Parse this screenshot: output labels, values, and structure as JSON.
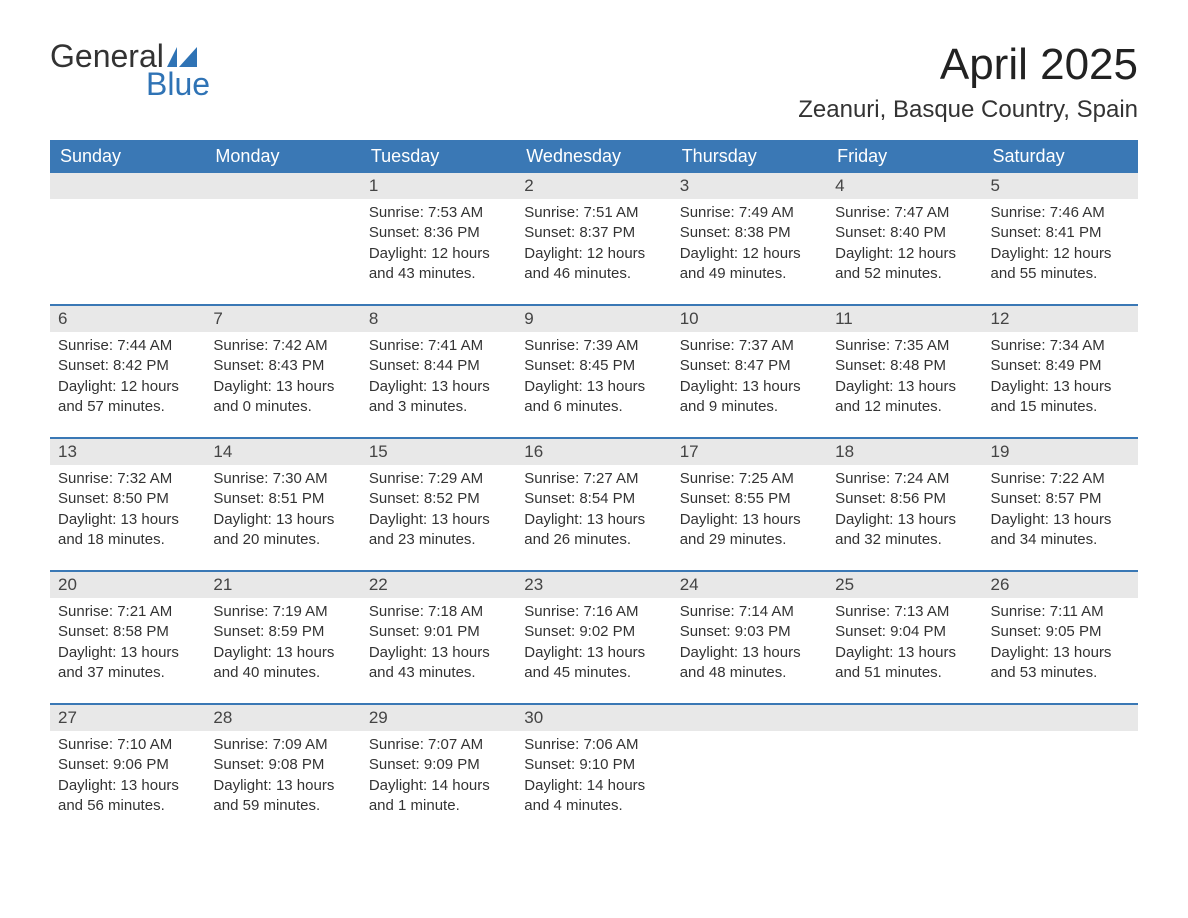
{
  "logo": {
    "word1": "General",
    "word2": "Blue"
  },
  "title": "April 2025",
  "location": "Zeanuri, Basque Country, Spain",
  "colors": {
    "header_bg": "#3a78b5",
    "header_text": "#ffffff",
    "daynum_bg": "#e8e8e8",
    "text": "#333333",
    "logo_blue": "#2f73b5",
    "row_border": "#3a78b5"
  },
  "typography": {
    "title_fontsize": 44,
    "location_fontsize": 24,
    "dow_fontsize": 18,
    "daynum_fontsize": 17,
    "body_fontsize": 15
  },
  "calendar": {
    "type": "table",
    "days_of_week": [
      "Sunday",
      "Monday",
      "Tuesday",
      "Wednesday",
      "Thursday",
      "Friday",
      "Saturday"
    ],
    "weeks": [
      [
        null,
        null,
        {
          "n": "1",
          "sunrise": "7:53 AM",
          "sunset": "8:36 PM",
          "daylight": "12 hours and 43 minutes."
        },
        {
          "n": "2",
          "sunrise": "7:51 AM",
          "sunset": "8:37 PM",
          "daylight": "12 hours and 46 minutes."
        },
        {
          "n": "3",
          "sunrise": "7:49 AM",
          "sunset": "8:38 PM",
          "daylight": "12 hours and 49 minutes."
        },
        {
          "n": "4",
          "sunrise": "7:47 AM",
          "sunset": "8:40 PM",
          "daylight": "12 hours and 52 minutes."
        },
        {
          "n": "5",
          "sunrise": "7:46 AM",
          "sunset": "8:41 PM",
          "daylight": "12 hours and 55 minutes."
        }
      ],
      [
        {
          "n": "6",
          "sunrise": "7:44 AM",
          "sunset": "8:42 PM",
          "daylight": "12 hours and 57 minutes."
        },
        {
          "n": "7",
          "sunrise": "7:42 AM",
          "sunset": "8:43 PM",
          "daylight": "13 hours and 0 minutes."
        },
        {
          "n": "8",
          "sunrise": "7:41 AM",
          "sunset": "8:44 PM",
          "daylight": "13 hours and 3 minutes."
        },
        {
          "n": "9",
          "sunrise": "7:39 AM",
          "sunset": "8:45 PM",
          "daylight": "13 hours and 6 minutes."
        },
        {
          "n": "10",
          "sunrise": "7:37 AM",
          "sunset": "8:47 PM",
          "daylight": "13 hours and 9 minutes."
        },
        {
          "n": "11",
          "sunrise": "7:35 AM",
          "sunset": "8:48 PM",
          "daylight": "13 hours and 12 minutes."
        },
        {
          "n": "12",
          "sunrise": "7:34 AM",
          "sunset": "8:49 PM",
          "daylight": "13 hours and 15 minutes."
        }
      ],
      [
        {
          "n": "13",
          "sunrise": "7:32 AM",
          "sunset": "8:50 PM",
          "daylight": "13 hours and 18 minutes."
        },
        {
          "n": "14",
          "sunrise": "7:30 AM",
          "sunset": "8:51 PM",
          "daylight": "13 hours and 20 minutes."
        },
        {
          "n": "15",
          "sunrise": "7:29 AM",
          "sunset": "8:52 PM",
          "daylight": "13 hours and 23 minutes."
        },
        {
          "n": "16",
          "sunrise": "7:27 AM",
          "sunset": "8:54 PM",
          "daylight": "13 hours and 26 minutes."
        },
        {
          "n": "17",
          "sunrise": "7:25 AM",
          "sunset": "8:55 PM",
          "daylight": "13 hours and 29 minutes."
        },
        {
          "n": "18",
          "sunrise": "7:24 AM",
          "sunset": "8:56 PM",
          "daylight": "13 hours and 32 minutes."
        },
        {
          "n": "19",
          "sunrise": "7:22 AM",
          "sunset": "8:57 PM",
          "daylight": "13 hours and 34 minutes."
        }
      ],
      [
        {
          "n": "20",
          "sunrise": "7:21 AM",
          "sunset": "8:58 PM",
          "daylight": "13 hours and 37 minutes."
        },
        {
          "n": "21",
          "sunrise": "7:19 AM",
          "sunset": "8:59 PM",
          "daylight": "13 hours and 40 minutes."
        },
        {
          "n": "22",
          "sunrise": "7:18 AM",
          "sunset": "9:01 PM",
          "daylight": "13 hours and 43 minutes."
        },
        {
          "n": "23",
          "sunrise": "7:16 AM",
          "sunset": "9:02 PM",
          "daylight": "13 hours and 45 minutes."
        },
        {
          "n": "24",
          "sunrise": "7:14 AM",
          "sunset": "9:03 PM",
          "daylight": "13 hours and 48 minutes."
        },
        {
          "n": "25",
          "sunrise": "7:13 AM",
          "sunset": "9:04 PM",
          "daylight": "13 hours and 51 minutes."
        },
        {
          "n": "26",
          "sunrise": "7:11 AM",
          "sunset": "9:05 PM",
          "daylight": "13 hours and 53 minutes."
        }
      ],
      [
        {
          "n": "27",
          "sunrise": "7:10 AM",
          "sunset": "9:06 PM",
          "daylight": "13 hours and 56 minutes."
        },
        {
          "n": "28",
          "sunrise": "7:09 AM",
          "sunset": "9:08 PM",
          "daylight": "13 hours and 59 minutes."
        },
        {
          "n": "29",
          "sunrise": "7:07 AM",
          "sunset": "9:09 PM",
          "daylight": "14 hours and 1 minute."
        },
        {
          "n": "30",
          "sunrise": "7:06 AM",
          "sunset": "9:10 PM",
          "daylight": "14 hours and 4 minutes."
        },
        null,
        null,
        null
      ]
    ],
    "labels": {
      "sunrise": "Sunrise: ",
      "sunset": "Sunset: ",
      "daylight": "Daylight: "
    }
  }
}
